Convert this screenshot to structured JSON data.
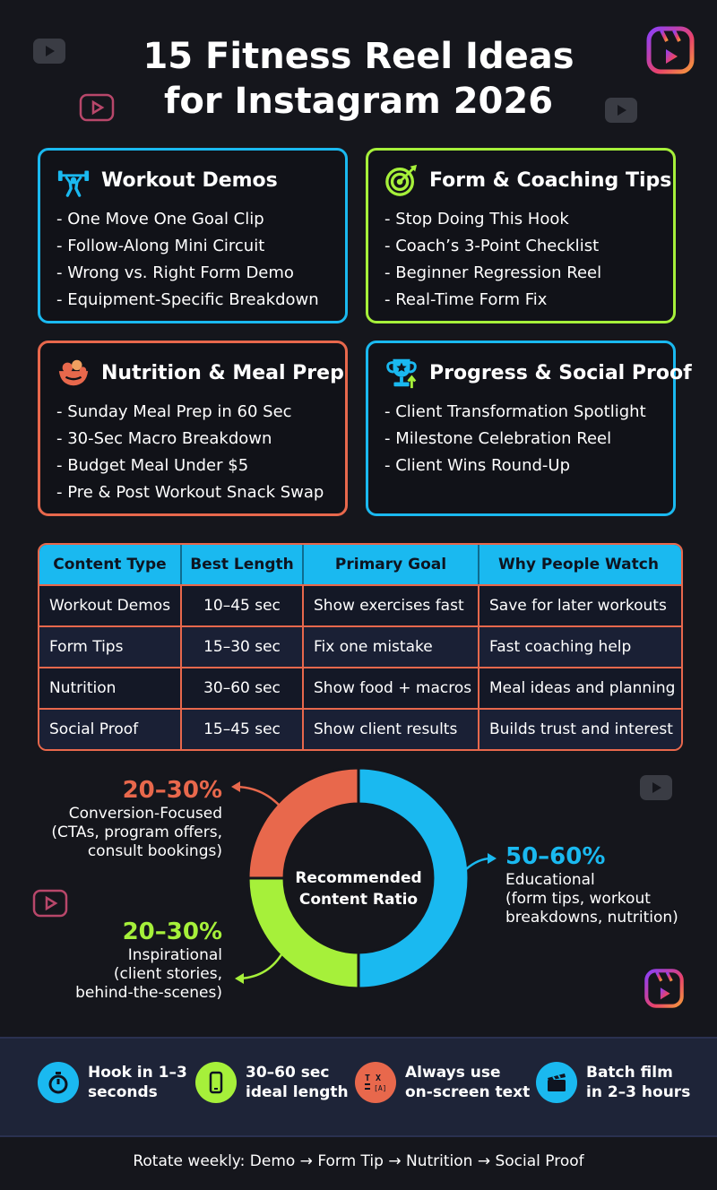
{
  "title_line1": "15 Fitness Reel Ideas",
  "title_line2": "for Instagram 2026",
  "colors": {
    "blue": "#1ab9f0",
    "green": "#a6f03a",
    "coral": "#e8684c",
    "band": "#1e2438"
  },
  "cards": [
    {
      "title": "Workout Demos",
      "icon": "weightlifter-icon",
      "items": [
        "- One Move One Goal Clip",
        "- Follow-Along Mini Circuit",
        "- Wrong vs. Right Form Demo",
        "- Equipment-Specific Breakdown"
      ]
    },
    {
      "title": "Form & Coaching Tips",
      "icon": "target-icon",
      "items": [
        "- Stop Doing This Hook",
        "- Coach’s 3-Point Checklist",
        "- Beginner Regression Reel",
        "- Real-Time Form Fix"
      ]
    },
    {
      "title": "Nutrition & Meal Prep",
      "icon": "food-bowl-icon",
      "items": [
        "- Sunday Meal Prep in 60 Sec",
        "- 30-Sec Macro Breakdown",
        "- Budget Meal Under $5",
        "- Pre & Post Workout Snack Swap"
      ]
    },
    {
      "title": "Progress & Social Proof",
      "icon": "trophy-icon",
      "items": [
        "- Client Transformation Spotlight",
        "- Milestone Celebration Reel",
        "- Client Wins Round-Up"
      ]
    }
  ],
  "table": {
    "headers": [
      "Content Type",
      "Best Length",
      "Primary Goal",
      "Why People Watch"
    ],
    "rows": [
      [
        "Workout Demos",
        "10–45 sec",
        "Show exercises fast",
        "Save for later workouts"
      ],
      [
        "Form Tips",
        "15–30 sec",
        "Fix one mistake",
        "Fast coaching help"
      ],
      [
        "Nutrition",
        "30–60 sec",
        "Show food + macros",
        "Meal ideas and planning"
      ],
      [
        "Social Proof",
        "15–45 sec",
        "Show client results",
        "Builds trust and interest"
      ]
    ]
  },
  "chart_data": {
    "type": "pie",
    "title": "Recommended Content Ratio",
    "slices": [
      {
        "label": "Educational",
        "range": "50–60%",
        "value": 50,
        "detail": [
          "(form tips, workout",
          "breakdowns, nutrition)"
        ],
        "color": "#1ab9f0"
      },
      {
        "label": "Inspirational",
        "range": "20–30%",
        "value": 25,
        "detail": [
          "(client stories,",
          "behind-the-scenes)"
        ],
        "color": "#a6f03a"
      },
      {
        "label": "Conversion-Focused",
        "range": "20–30%",
        "value": 25,
        "detail": [
          "(CTAs, program offers,",
          "consult bookings)"
        ],
        "color": "#e8684c"
      }
    ]
  },
  "tips": [
    {
      "line1": "Hook in 1–3",
      "line2": "seconds",
      "icon": "stopwatch-icon",
      "color": "#1ab9f0"
    },
    {
      "line1": "30–60 sec",
      "line2": "ideal length",
      "icon": "phone-icon",
      "color": "#a6f03a"
    },
    {
      "line1": "Always use",
      "line2": "on-screen text",
      "icon": "text-captions-icon",
      "color": "#e8684c"
    },
    {
      "line1": "Batch film",
      "line2": "in 2–3 hours",
      "icon": "clapperboard-icon",
      "color": "#1ab9f0"
    }
  ],
  "footer": "Rotate weekly: Demo → Form Tip → Nutrition → Social Proof"
}
